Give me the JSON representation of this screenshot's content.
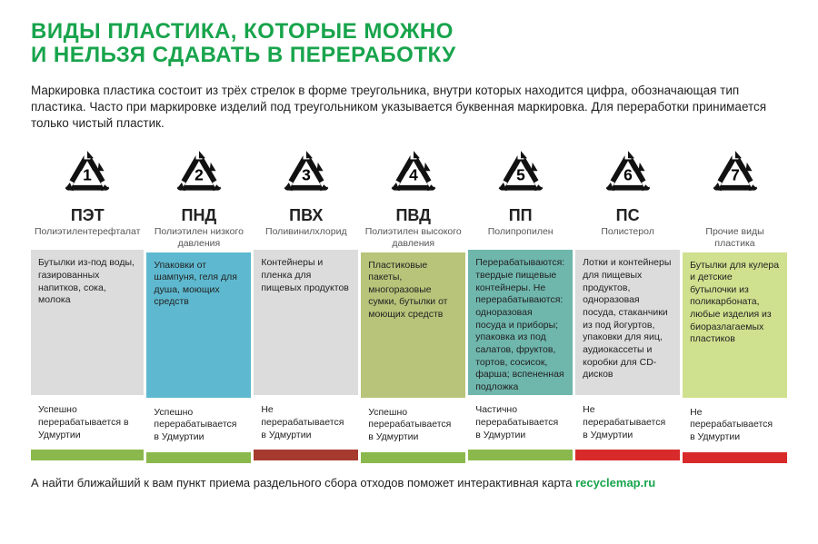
{
  "title_line1": "ВИДЫ ПЛАСТИКА, КОТОРЫЕ МОЖНО",
  "title_line2": "И НЕЛЬЗЯ СДАВАТЬ В ПЕРЕРАБОТКУ",
  "intro": "Маркировка пластика состоит из трёх стрелок в форме треугольника, внутри которых находится цифра, обозначающая тип пластика. Часто при маркировке изделий под треугольником указывается буквенная маркировка. Для переработки принимается только чистый пластик.",
  "footer_text": "А найти ближайший к вам пункт приема раздельного сбора отходов поможет интерактивная карта ",
  "footer_link": "recyclemap.ru",
  "colors": {
    "green": "#8bb84c",
    "blue": "#5eb9d0",
    "brownred": "#a73a2f",
    "olive": "#b8c47a",
    "teal": "#6fb6ac",
    "red": "#d82a2a",
    "lime": "#cfe08e",
    "ex_grey": "#dcdcdc"
  },
  "columns": [
    {
      "num": "1",
      "abbr": "ПЭТ",
      "full": "Полиэтилентерефталат",
      "examples": "Бутылки из-под воды, газированных напитков, сока, молока",
      "ex_bg": "#dcdcdc",
      "status": "Успешно перерабатывается в Удмуртии",
      "bar_color": "#8bb84c"
    },
    {
      "num": "2",
      "abbr": "ПНД",
      "full": "Полиэтилен низкого давления",
      "examples": "Упаковки от шампуня, геля для душа, моющих средств",
      "ex_bg": "#5eb9d0",
      "status": "Успешно перерабатывается в Удмуртии",
      "bar_color": "#8bb84c"
    },
    {
      "num": "3",
      "abbr": "ПВХ",
      "full": "Поливинилхлорид",
      "examples": "Контейнеры и пленка для пищевых продуктов",
      "ex_bg": "#dcdcdc",
      "status": "Не перерабатывается в Удмуртии",
      "bar_color": "#a73a2f"
    },
    {
      "num": "4",
      "abbr": "ПВД",
      "full": "Полиэтилен высокого давления",
      "examples": "Пластиковые пакеты, многоразовые сумки, бутылки от моющих средств",
      "ex_bg": "#b8c47a",
      "status": "Успешно перерабатывается в Удмуртии",
      "bar_color": "#8bb84c"
    },
    {
      "num": "5",
      "abbr": "ПП",
      "full": "Полипропилен",
      "examples": "Перерабатываются: твердые пищевые контейнеры. Не перерабатываются: одноразовая посуда и приборы; упаковка из под салатов, фруктов, тортов, сосисок, фарша; вспененная подложка",
      "ex_bg": "#6fb6ac",
      "status": "Частично перерабатывается в Удмуртии",
      "bar_color": "#8bb84c"
    },
    {
      "num": "6",
      "abbr": "ПС",
      "full": "Полистерол",
      "examples": "Лотки и контейнеры для пищевых продуктов, одноразовая посуда, стаканчики из под йогуртов, упаковки для яиц, аудиокассеты и коробки для CD-дисков",
      "ex_bg": "#dcdcdc",
      "status": "Не перерабатывается в Удмуртии",
      "bar_color": "#d82a2a"
    },
    {
      "num": "7",
      "abbr": "",
      "full": "Прочие виды пластика",
      "examples": "Бутылки для кулера и детские бутылочки из поликарбоната, любые изделия из биоразлагаемых пластиков",
      "ex_bg": "#cfe08e",
      "status": "Не перерабатывается в Удмуртии",
      "bar_color": "#d82a2a"
    }
  ]
}
